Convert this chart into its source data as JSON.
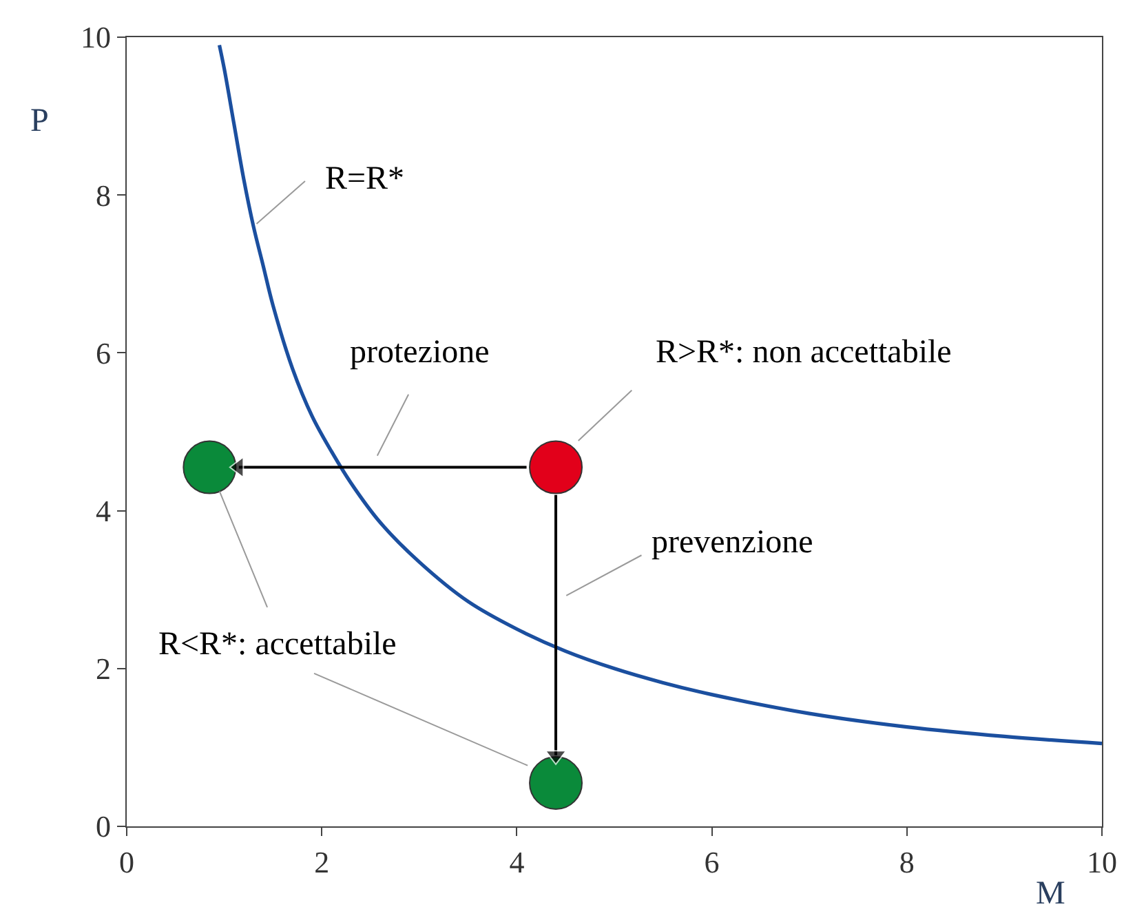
{
  "chart_data": {
    "type": "line",
    "xlabel": "M",
    "ylabel": "P",
    "xlim": [
      0,
      10
    ],
    "xticks": [
      0,
      2,
      4,
      6,
      8,
      10
    ],
    "ylim": [
      0,
      10
    ],
    "yticks": [
      0,
      2,
      4,
      6,
      8,
      10
    ],
    "series": [
      {
        "color": "#1b4f9f",
        "x": [
          0.95,
          1.0,
          1.1,
          1.2,
          1.3,
          1.4,
          1.5,
          1.7,
          1.9,
          2.1,
          2.3,
          2.6,
          3.0,
          3.5,
          4.0,
          4.5,
          5.0,
          5.5,
          6.0,
          7.0,
          8.0,
          9.0,
          10.0
        ],
        "values": [
          9.9,
          9.6,
          8.9,
          8.2,
          7.6,
          7.1,
          6.6,
          5.8,
          5.2,
          4.75,
          4.35,
          3.85,
          3.35,
          2.85,
          2.5,
          2.22,
          2.0,
          1.82,
          1.67,
          1.43,
          1.26,
          1.14,
          1.05
        ],
        "marker": "none"
      },
      {
        "type": "scatter",
        "x": [
          0.85,
          4.4,
          4.4
        ],
        "values": [
          4.55,
          4.55,
          0.55
        ],
        "colors": [
          "#0a8a3a",
          "#e2001a",
          "#0a8a3a"
        ],
        "marker": "circle"
      },
      {
        "type": "line",
        "color": "#000000",
        "x": [
          4.1,
          1.15
        ],
        "values": [
          4.55,
          4.55
        ],
        "marker": "triangle"
      },
      {
        "type": "line",
        "color": "#000000",
        "x": [
          4.4,
          4.4
        ],
        "values": [
          4.2,
          0.9
        ],
        "marker": "triangle"
      }
    ],
    "annotations": [
      {
        "text": "R=R*",
        "x": 1.3,
        "y": 7.6
      },
      "protezione",
      {
        "text": "R>R*: non accettabile",
        "x": 4.6,
        "y": 4.85
      },
      "prevenzione",
      {
        "text": "R<R*: accettabile",
        "x": 4.15,
        "y": 0.75
      }
    ]
  }
}
